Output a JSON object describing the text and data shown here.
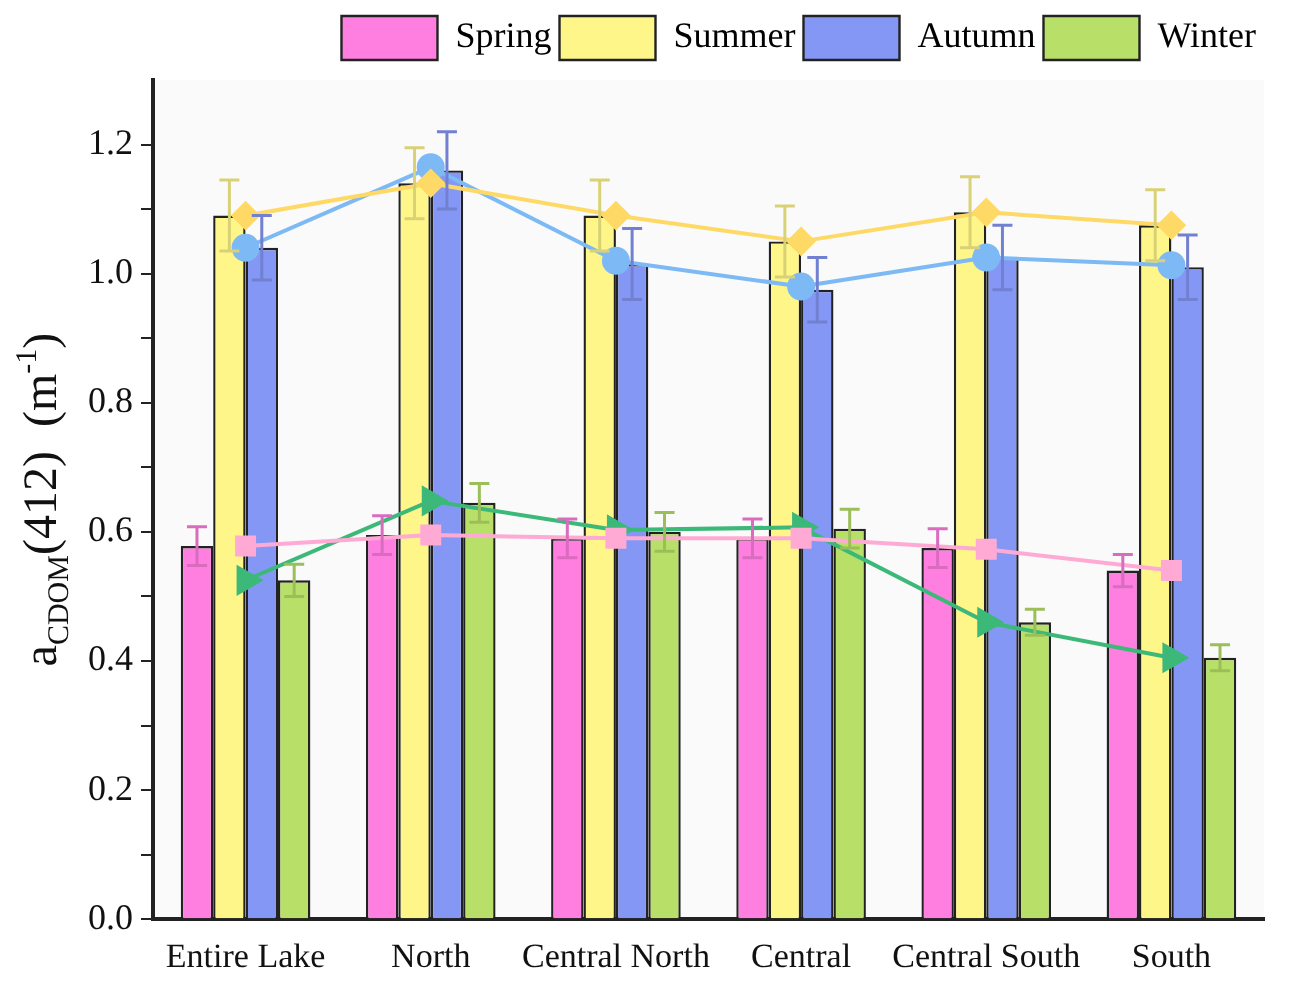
{
  "chart_data": {
    "type": "bar",
    "ylabel": "a$_{CDOM}$(412)  (m$^{-1}$)",
    "categories": [
      "Entire Lake",
      "North",
      "Central North",
      "Central",
      "Central South",
      "South"
    ],
    "series": [
      {
        "name": "Spring",
        "color": "#ff7fe0",
        "values": [
          0.578,
          0.595,
          0.59,
          0.59,
          0.575,
          0.54
        ],
        "errors": [
          0.03,
          0.03,
          0.03,
          0.03,
          0.03,
          0.025
        ]
      },
      {
        "name": "Summer",
        "color": "#fff68a",
        "values": [
          1.09,
          1.14,
          1.09,
          1.05,
          1.095,
          1.075
        ],
        "errors": [
          0.055,
          0.055,
          0.055,
          0.055,
          0.055,
          0.055
        ]
      },
      {
        "name": "Autumn",
        "color": "#8597f5",
        "values": [
          1.04,
          1.16,
          1.015,
          0.975,
          1.025,
          1.01
        ],
        "errors": [
          0.05,
          0.06,
          0.055,
          0.05,
          0.05,
          0.05
        ]
      },
      {
        "name": "Winter",
        "color": "#b8e068",
        "values": [
          0.525,
          0.645,
          0.6,
          0.605,
          0.46,
          0.405
        ],
        "errors": [
          0.025,
          0.03,
          0.03,
          0.03,
          0.02,
          0.02
        ]
      },
      {
        "type": "line",
        "color": "#ffaad4",
        "marker": "square",
        "values": [
          0.578,
          0.595,
          0.59,
          0.59,
          0.573,
          0.54
        ]
      },
      {
        "type": "line",
        "color": "#ffd966",
        "marker": "diamond",
        "values": [
          1.09,
          1.14,
          1.09,
          1.05,
          1.095,
          1.075
        ]
      },
      {
        "type": "line",
        "color": "#7cb9f5",
        "marker": "circle",
        "values": [
          1.04,
          1.165,
          1.02,
          0.98,
          1.025,
          1.013
        ]
      },
      {
        "type": "line",
        "color": "#3cb878",
        "marker": "triangle",
        "values": [
          0.525,
          0.648,
          0.603,
          0.607,
          0.46,
          0.405
        ]
      }
    ],
    "ylim": [
      0,
      1.3
    ],
    "yticks": [
      {
        "value": 0,
        "label": "0.0"
      },
      {
        "value": 0.1,
        "label": null
      },
      {
        "value": 0.2,
        "label": "0.2"
      },
      {
        "value": 0.3,
        "label": null
      },
      {
        "value": 0.4,
        "label": "0.4"
      },
      {
        "value": 0.5,
        "label": null
      },
      {
        "value": 0.6,
        "label": "0.6"
      },
      {
        "value": 0.7,
        "label": null
      },
      {
        "value": 0.8,
        "label": "0.8"
      },
      {
        "value": 0.9,
        "label": null
      },
      {
        "value": 1,
        "label": "1.0"
      },
      {
        "value": 1.1,
        "label": null
      },
      {
        "value": 1.2,
        "label": "1.2"
      }
    ],
    "legend": "top right",
    "grid": false
  }
}
